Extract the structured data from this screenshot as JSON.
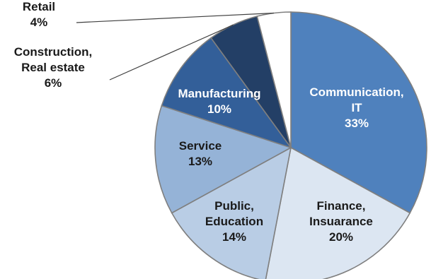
{
  "chart_data": {
    "type": "pie",
    "title": "",
    "slices": [
      {
        "name": "Communication, IT",
        "label_lines": [
          "Communication,",
          "IT"
        ],
        "value": 33,
        "value_label": "33%",
        "color": "#4f81bd",
        "text_color": "#ffffff"
      },
      {
        "name": "Finance, Insuarance",
        "label_lines": [
          "Finance,",
          "Insuarance"
        ],
        "value": 20,
        "value_label": "20%",
        "color": "#dce6f2",
        "text_color": "#1a1a1a"
      },
      {
        "name": "Public, Education",
        "label_lines": [
          "Public,",
          "Education"
        ],
        "value": 14,
        "value_label": "14%",
        "color": "#b9cde5",
        "text_color": "#1a1a1a"
      },
      {
        "name": "Service",
        "label_lines": [
          "Service"
        ],
        "value": 13,
        "value_label": "13%",
        "color": "#95b3d7",
        "text_color": "#1a1a1a"
      },
      {
        "name": "Manufacturing",
        "label_lines": [
          "Manufacturing"
        ],
        "value": 10,
        "value_label": "10%",
        "color": "#335f99",
        "text_color": "#ffffff"
      },
      {
        "name": "Construction, Real estate",
        "label_lines": [
          "Construction,",
          "Real estate"
        ],
        "value": 6,
        "value_label": "6%",
        "color": "#233f66",
        "text_color": "#1a1a1a"
      },
      {
        "name": "Retail",
        "label_lines": [
          "Retail"
        ],
        "value": 4,
        "value_label": "4%",
        "color": "#ffffff",
        "text_color": "#1a1a1a"
      }
    ]
  }
}
